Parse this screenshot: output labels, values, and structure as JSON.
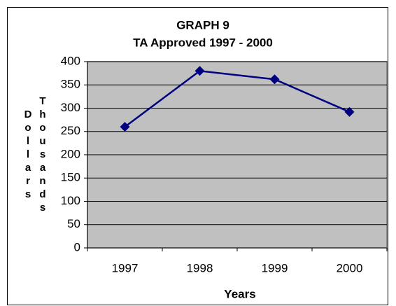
{
  "chart_data": {
    "type": "line",
    "title": "GRAPH 9",
    "subtitle": "TA Approved 1997 - 2000",
    "categories": [
      "1997",
      "1998",
      "1999",
      "2000"
    ],
    "values": [
      260,
      380,
      362,
      292
    ],
    "color": "#000080",
    "xlabel": "Years",
    "ylabel_lines": [
      "Dollars",
      "Thousands"
    ],
    "ylim": [
      0,
      400
    ],
    "yticks": [
      0,
      50,
      100,
      150,
      200,
      250,
      300,
      350,
      400
    ],
    "grid": true,
    "plot_background": "#c0c0c0"
  }
}
